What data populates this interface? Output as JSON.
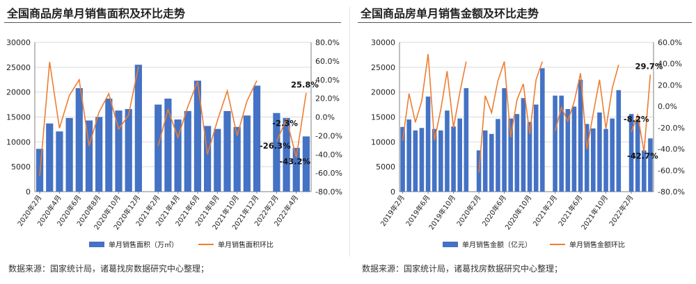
{
  "colors": {
    "bar": "#4472c4",
    "line": "#ed7d31",
    "grid": "#d9d9d9",
    "axis": "#7f7f7f",
    "text": "#222222"
  },
  "charts": [
    {
      "panel": "left",
      "title": "全国商品房单月销售面积及环比走势",
      "source": "数据来源：国家统计局，诸葛找房数据研究中心整理；",
      "chart_data": {
        "type": "bar+line",
        "categories": [
          "2020年2月",
          "2020年3月",
          "2020年4月",
          "2020年5月",
          "2020年6月",
          "2020年7月",
          "2020年8月",
          "2020年9月",
          "2020年10月",
          "2020年11月",
          "2020年12月",
          "2021年1月",
          "2021年2月",
          "2021年3月",
          "2021年4月",
          "2021年5月",
          "2021年6月",
          "2021年7月",
          "2021年8月",
          "2021年9月",
          "2021年10月",
          "2021年11月",
          "2021年12月",
          "2022年1月",
          "2022年2月",
          "2022年3月",
          "2022年4月",
          "2022年5月"
        ],
        "x_tick_labels": [
          "2020年2月",
          "2020年4月",
          "2020年6月",
          "2020年8月",
          "2020年10月",
          "2020年12月",
          "2021年2月",
          "2021年4月",
          "2021年6月",
          "2021年8月",
          "2021年10月",
          "2021年12月",
          "2022年2月",
          "2022年4月"
        ],
        "series": [
          {
            "name": "单月销售面积（万㎡）",
            "type": "bar",
            "axis": "left",
            "values": [
              8600,
              13700,
              12100,
              14800,
              20800,
              14300,
              15000,
              18700,
              16300,
              16600,
              25500,
              null,
              17500,
              18700,
              14500,
              16200,
              22300,
              13200,
              12600,
              16200,
              13000,
              15300,
              21300,
              null,
              15800,
              14800,
              8800,
              11100
            ]
          },
          {
            "name": "单月销售面积环比",
            "type": "line",
            "axis": "right",
            "values": [
              -63,
              59,
              -12,
              23,
              40,
              -31,
              5,
              25,
              -13,
              2,
              54,
              null,
              -31,
              8,
              -22,
              11,
              38,
              -40,
              -4,
              28,
              -20,
              17,
              39,
              null,
              -26.3,
              -2.3,
              -43.2,
              25.8
            ]
          }
        ],
        "annotations": [
          {
            "category": "2022年2月",
            "text": "-26.3%"
          },
          {
            "category": "2022年3月",
            "text": "-2.3%"
          },
          {
            "category": "2022年4月",
            "text": "-43.2%"
          },
          {
            "category": "2022年5月",
            "text": "25.8%"
          }
        ],
        "ylim_left": [
          0,
          30000
        ],
        "yticks_left": [
          0,
          5000,
          10000,
          15000,
          20000,
          25000,
          30000
        ],
        "ylim_right": [
          -80,
          80
        ],
        "yticks_right": [
          "-80.0%",
          "-60.0%",
          "-40.0%",
          "-20.0%",
          "0.0%",
          "20.0%",
          "40.0%",
          "60.0%",
          "80.0%"
        ],
        "grid": true,
        "legend": "bottom"
      }
    },
    {
      "panel": "right",
      "title": "全国商品房单月销售金额及环比走势",
      "source": "数据来源：国家统计局，诸葛找房数据研究中心整理；",
      "chart_data": {
        "type": "bar+line",
        "categories": [
          "2019年2月",
          "2019年3月",
          "2019年4月",
          "2019年5月",
          "2019年6月",
          "2019年7月",
          "2019年8月",
          "2019年9月",
          "2019年10月",
          "2019年11月",
          "2019年12月",
          "2020年1月",
          "2020年2月",
          "2020年3月",
          "2020年4月",
          "2020年5月",
          "2020年6月",
          "2020年7月",
          "2020年8月",
          "2020年9月",
          "2020年10月",
          "2020年11月",
          "2020年12月",
          "2021年1月",
          "2021年2月",
          "2021年3月",
          "2021年4月",
          "2021年5月",
          "2021年6月",
          "2021年7月",
          "2021年8月",
          "2021年9月",
          "2021年10月",
          "2021年11月",
          "2021年12月",
          "2022年1月",
          "2022年2月",
          "2022年3月",
          "2022年4月",
          "2022年5月"
        ],
        "x_tick_labels": [
          "2019年2月",
          "2019年6月",
          "2019年10月",
          "2020年2月",
          "2020年6月",
          "2020年10月",
          "2021年2月",
          "2021年6月",
          "2021年10月",
          "2022年2月"
        ],
        "series": [
          {
            "name": "单月销售金额（亿元）",
            "type": "bar",
            "axis": "left",
            "values": [
              13000,
              14500,
              12300,
              12800,
              19100,
              12600,
              12300,
              16300,
              13100,
              14700,
              20800,
              null,
              8300,
              12300,
              11600,
              14600,
              20800,
              14700,
              15600,
              18800,
              14000,
              17500,
              24800,
              null,
              19300,
              19300,
              16600,
              17100,
              22500,
              13600,
              12700,
              15900,
              12600,
              14700,
              20400,
              null,
              15600,
              14500,
              8300,
              10700
            ]
          },
          {
            "name": "单月销售金额环比",
            "type": "line",
            "axis": "right",
            "values": [
              -32,
              12,
              -15,
              5,
              49,
              -32,
              -3,
              33,
              -20,
              13,
              42,
              null,
              -62,
              10,
              -6,
              24,
              42,
              -29,
              6,
              21,
              -26,
              25,
              42,
              null,
              -23,
              -1,
              -14,
              4,
              31,
              -40,
              -7,
              25,
              -21,
              17,
              39,
              null,
              -24,
              -8.2,
              -42.7,
              29.7
            ]
          }
        ],
        "annotations": [
          {
            "category": "2022年3月",
            "text": "-8.2%"
          },
          {
            "category": "2022年4月",
            "text": "-42.7%"
          },
          {
            "category": "2022年5月",
            "text": "29.7%"
          }
        ],
        "ylim_left": [
          0,
          30000
        ],
        "yticks_left": [
          0,
          5000,
          10000,
          15000,
          20000,
          25000,
          30000
        ],
        "ylim_right": [
          -80,
          60
        ],
        "yticks_right": [
          "-80.0%",
          "-60.0%",
          "-40.0%",
          "-20.0%",
          "0.0%",
          "20.0%",
          "40.0%",
          "60.0%"
        ],
        "grid": true,
        "legend": "bottom"
      }
    }
  ]
}
